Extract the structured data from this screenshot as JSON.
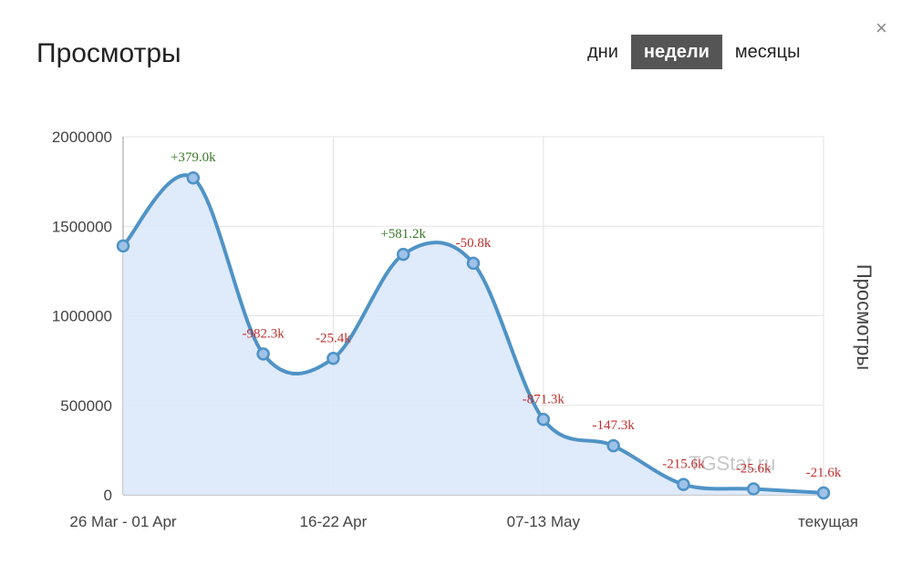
{
  "header": {
    "title": "Просмотры",
    "close_glyph": "×"
  },
  "periods": [
    {
      "label": "дни",
      "active": false
    },
    {
      "label": "недели",
      "active": true
    },
    {
      "label": "месяцы",
      "active": false
    }
  ],
  "watermark": "TGStat.ru",
  "colors": {
    "line": "#4f93c6",
    "fill": "#dbe8fb",
    "positive": "#3a7a2a",
    "negative": "#c0302e",
    "grid": "#e3e3e3",
    "axis": "#999999"
  },
  "chart_data": {
    "type": "area",
    "title": "",
    "xlabel": "",
    "ylabel": "Просмотры",
    "ylim": [
      0,
      2000000
    ],
    "yticks": [
      0,
      500000,
      1000000,
      1500000,
      2000000
    ],
    "x_tick_labels": [
      {
        "index": 0,
        "label": "26 Mar - 01 Apr"
      },
      {
        "index": 3,
        "label": "16-22 Apr"
      },
      {
        "index": 6,
        "label": "07-13 May"
      },
      {
        "index": 10,
        "label": "текущая"
      }
    ],
    "grid": true,
    "series": [
      {
        "values": [
          1390000,
          1770000,
          787000,
          762000,
          1343000,
          1293000,
          421000,
          274000,
          58000,
          33000,
          11000
        ],
        "labels": [
          "",
          "+379.0k",
          "-982.3k",
          "-25.4k",
          "+581.2k",
          "-50.8k",
          "-871.3k",
          "-147.3k",
          "-215.6k",
          "-25.6k",
          "-21.6k"
        ]
      }
    ]
  }
}
